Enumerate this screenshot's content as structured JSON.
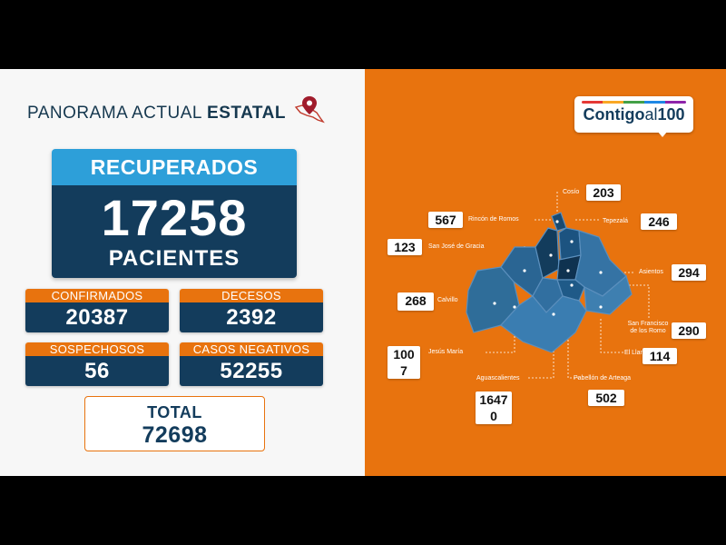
{
  "header": {
    "title_normal": "PANORAMA ACTUAL ",
    "title_bold": "ESTATAL",
    "icon": "mexico-map-pin-icon"
  },
  "recuperados": {
    "label": "RECUPERADOS",
    "value": "17258",
    "unit": "PACIENTES"
  },
  "stats": {
    "confirmados": {
      "label": "CONFIRMADOS",
      "value": "20387"
    },
    "decesos": {
      "label": "DECESOS",
      "value": "2392"
    },
    "sospechosos": {
      "label": "SOSPECHOSOS",
      "value": "56"
    },
    "negativos": {
      "label": "CASOS NEGATIVOS",
      "value": "52255"
    }
  },
  "total": {
    "label": "TOTAL",
    "value": "72698"
  },
  "logo": {
    "text_bold": "Contigo",
    "text_light": "al",
    "text_num": "100"
  },
  "municipios": [
    {
      "name": "Cosío",
      "value": "203"
    },
    {
      "name": "Rincón de Romos",
      "value": "567"
    },
    {
      "name": "Tepezalá",
      "value": "246"
    },
    {
      "name": "San José de Gracia",
      "value": "123"
    },
    {
      "name": "Asientos",
      "value": "294"
    },
    {
      "name": "Calvillo",
      "value": "268"
    },
    {
      "name": "San Francisco de los Romo",
      "value": "290"
    },
    {
      "name": "Jesús María",
      "value": "100",
      "value2": "7"
    },
    {
      "name": "El Llano",
      "value": "114"
    },
    {
      "name": "Aguascalientes",
      "value": "1647",
      "value2": "0"
    },
    {
      "name": "Pabellón de Arteaga",
      "value": "502"
    }
  ],
  "colors": {
    "orange": "#e8730e",
    "navy": "#133c5c",
    "light_blue": "#2d9fd9",
    "map_blue": "#2f6d99"
  }
}
